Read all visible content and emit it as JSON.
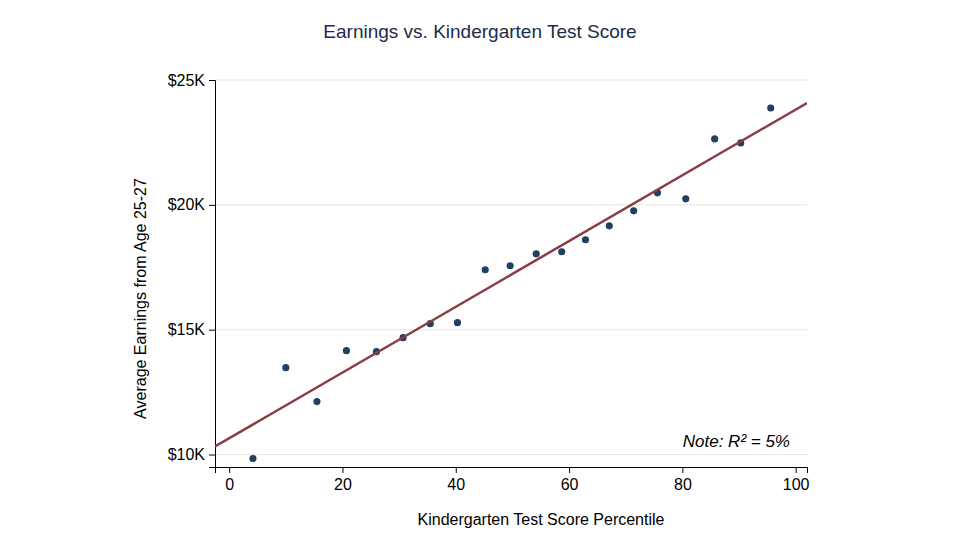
{
  "chart_data": {
    "type": "scatter",
    "title": "Earnings vs. Kindergarten Test Score",
    "x_label": "Kindergarten Test Score Percentile",
    "y_label": "Average Earnings from Age 25-27",
    "annotation": "Note: R² = 5%",
    "xlim": [
      -2.5,
      102
    ],
    "ylim": [
      9500,
      25000
    ],
    "xticks": [
      0,
      20,
      40,
      60,
      80,
      100
    ],
    "yticks": [
      {
        "value": 10000,
        "label": "$10K"
      },
      {
        "value": 15000,
        "label": "$15K"
      },
      {
        "value": 20000,
        "label": "$20K"
      },
      {
        "value": 25000,
        "label": "$25K"
      }
    ],
    "grid": true,
    "series": [
      {
        "type": "scatter",
        "color": "#1f3f63",
        "marker": "circle",
        "x": [
          4.2,
          10,
          15.5,
          20.7,
          26,
          30.7,
          35.5,
          40.3,
          45.2,
          49.6,
          54.2,
          58.7,
          62.9,
          67.1,
          71.4,
          75.6,
          80.6,
          85.7,
          90.3,
          95.6
        ],
        "values": [
          9840,
          13480,
          12120,
          14160,
          14120,
          14680,
          15240,
          15280,
          17400,
          17560,
          18040,
          18120,
          18600,
          19160,
          19760,
          20480,
          20240,
          22640,
          22480,
          23880
        ]
      },
      {
        "type": "line",
        "color": "#8b3d45",
        "line_style": "solid",
        "x": [
          -2.5,
          102
        ],
        "values": [
          10320,
          24080
        ]
      }
    ]
  }
}
